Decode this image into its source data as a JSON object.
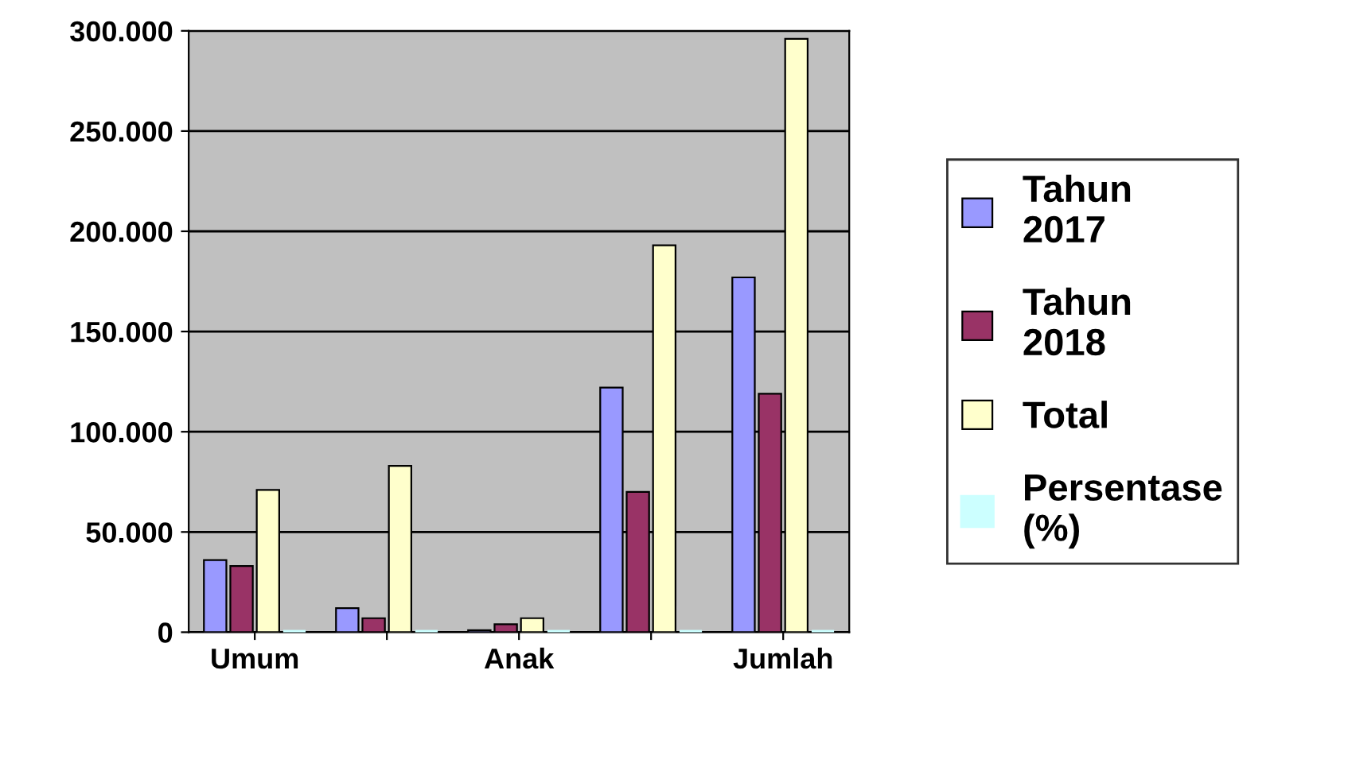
{
  "chart_data": {
    "type": "bar",
    "categories": [
      "Umum",
      null,
      "Anak",
      null,
      "Jumlah"
    ],
    "series": [
      {
        "name": "Tahun 2017",
        "color": "#9999ff",
        "values": [
          36000,
          12000,
          1000,
          122000,
          177000
        ]
      },
      {
        "name": "Tahun 2018",
        "color": "#993366",
        "values": [
          33000,
          7000,
          4000,
          70000,
          119000
        ]
      },
      {
        "name": "Total",
        "color": "#ffffcc",
        "values": [
          71000,
          83000,
          7000,
          193000,
          296000
        ]
      },
      {
        "name": "Persentase (%)",
        "color": "#ccffff",
        "values": [
          0,
          0,
          0,
          0,
          0
        ]
      }
    ],
    "ylim": [
      0,
      300000
    ],
    "yticks": [
      {
        "value": 0,
        "label": "0"
      },
      {
        "value": 50000,
        "label": "50.000"
      },
      {
        "value": 100000,
        "label": "100.000"
      },
      {
        "value": 150000,
        "label": "150.000"
      },
      {
        "value": 200000,
        "label": "200.000"
      },
      {
        "value": 250000,
        "label": "250.000"
      },
      {
        "value": 300000,
        "label": "300.000"
      }
    ],
    "grid": "y",
    "legend": "right"
  }
}
